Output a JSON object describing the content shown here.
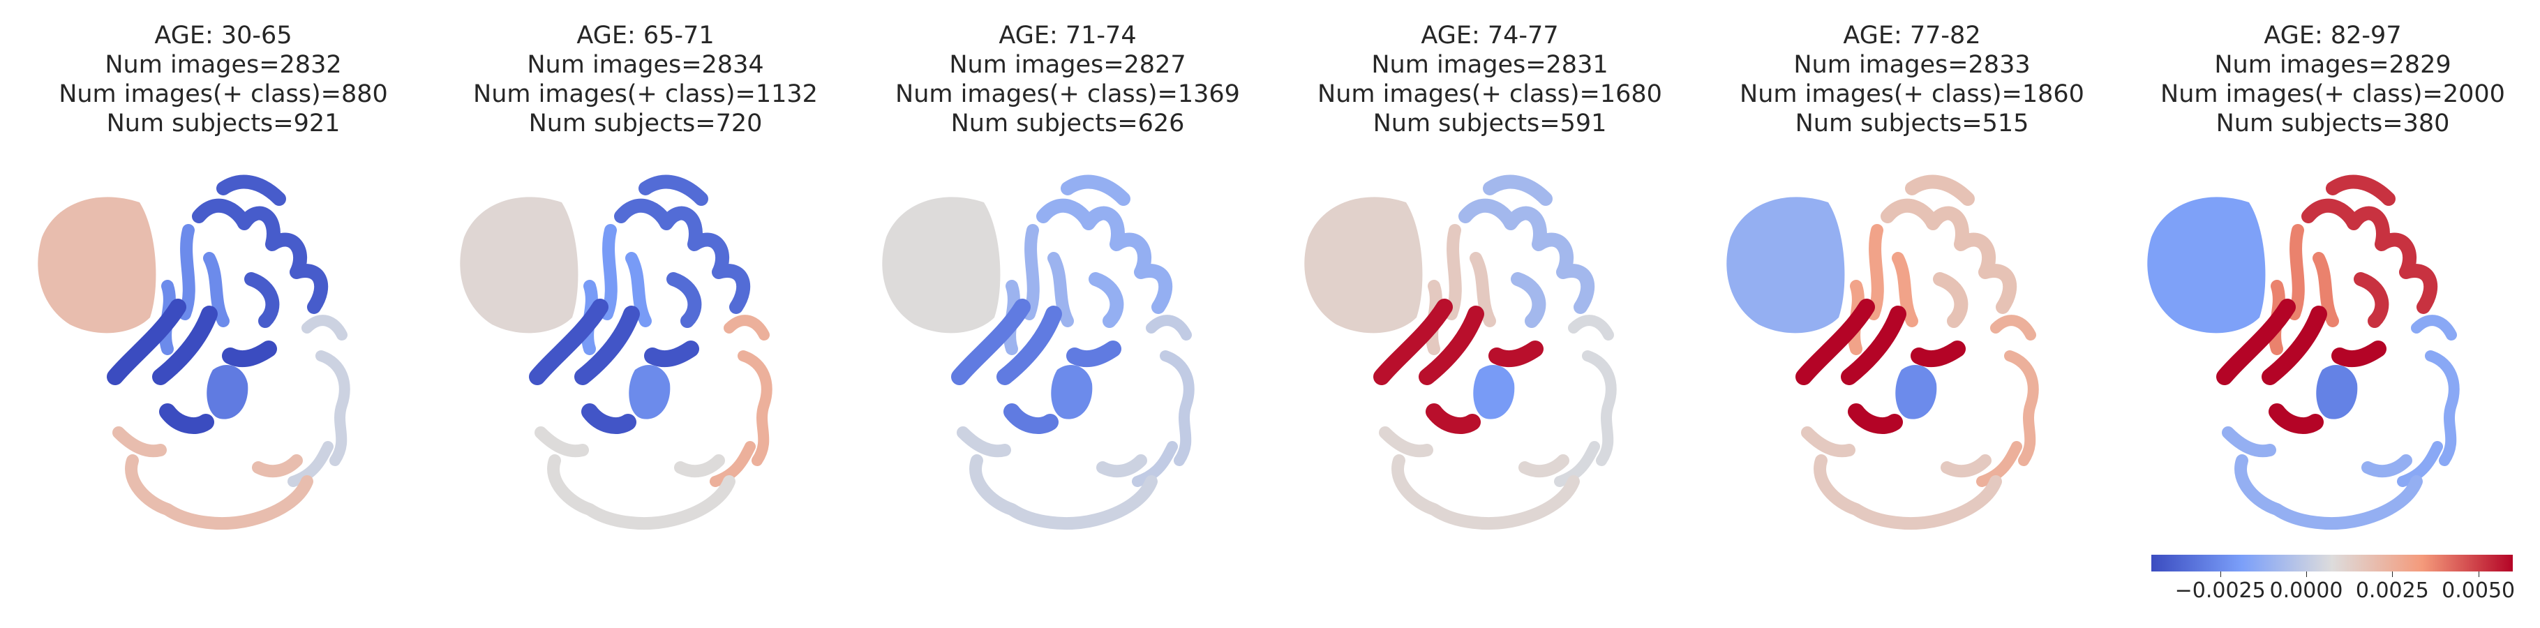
{
  "chart_data": {
    "type": "heatmap",
    "colormap": "coolwarm",
    "colorbar": {
      "range": [
        -0.0045,
        0.006
      ],
      "ticks": [
        -0.0025,
        0.0,
        0.0025,
        0.005
      ],
      "tick_labels": [
        "−0.0025",
        "0.0000",
        "0.0025",
        "0.0050"
      ],
      "placement": "bottom of last panel"
    },
    "panels": [
      {
        "lines": [
          "AGE: 30-65",
          "Num images=2832",
          "Num images(+ class)=880",
          "Num subjects=921"
        ],
        "region_values": {
          "cerebellum": 0.002,
          "frontal_cortex": -0.004,
          "inner_cortex": -0.0025,
          "deep_nuclei": -0.0045,
          "thalamus": -0.003,
          "lateral_cortex": 0.0003,
          "occipital_cortex": 0.002
        }
      },
      {
        "lines": [
          "AGE: 65-71",
          "Num images=2834",
          "Num images(+ class)=1132",
          "Num subjects=720"
        ],
        "region_values": {
          "cerebellum": 0.001,
          "frontal_cortex": -0.0035,
          "inner_cortex": -0.002,
          "deep_nuclei": -0.0042,
          "thalamus": -0.0025,
          "lateral_cortex": 0.0025,
          "occipital_cortex": 0.0008
        }
      },
      {
        "lines": [
          "AGE: 71-74",
          "Num images=2827",
          "Num images(+ class)=1369",
          "Num subjects=626"
        ],
        "region_values": {
          "cerebellum": 0.0008,
          "frontal_cortex": -0.0012,
          "inner_cortex": -0.001,
          "deep_nuclei": -0.003,
          "thalamus": -0.0025,
          "lateral_cortex": 0.0,
          "occipital_cortex": 0.0003
        }
      },
      {
        "lines": [
          "AGE: 74-77",
          "Num images=2831",
          "Num images(+ class)=1680",
          "Num subjects=591"
        ],
        "region_values": {
          "cerebellum": 0.0012,
          "frontal_cortex": -0.0008,
          "inner_cortex": 0.0015,
          "deep_nuclei": 0.0058,
          "thalamus": -0.002,
          "lateral_cortex": 0.0006,
          "occipital_cortex": 0.001
        }
      },
      {
        "lines": [
          "AGE: 77-82",
          "Num images=2833",
          "Num images(+ class)=1860",
          "Num subjects=515"
        ],
        "region_values": {
          "cerebellum": -0.0012,
          "frontal_cortex": 0.0018,
          "inner_cortex": 0.003,
          "deep_nuclei": 0.006,
          "thalamus": -0.0025,
          "lateral_cortex": 0.0025,
          "occipital_cortex": 0.0015
        }
      },
      {
        "lines": [
          "AGE: 82-97",
          "Num images=2829",
          "Num images(+ class)=2000",
          "Num subjects=380"
        ],
        "region_values": {
          "cerebellum": -0.0018,
          "frontal_cortex": 0.0052,
          "inner_cortex": 0.0038,
          "deep_nuclei": 0.006,
          "thalamus": -0.0028,
          "lateral_cortex": -0.0015,
          "occipital_cortex": -0.0012
        }
      }
    ]
  }
}
